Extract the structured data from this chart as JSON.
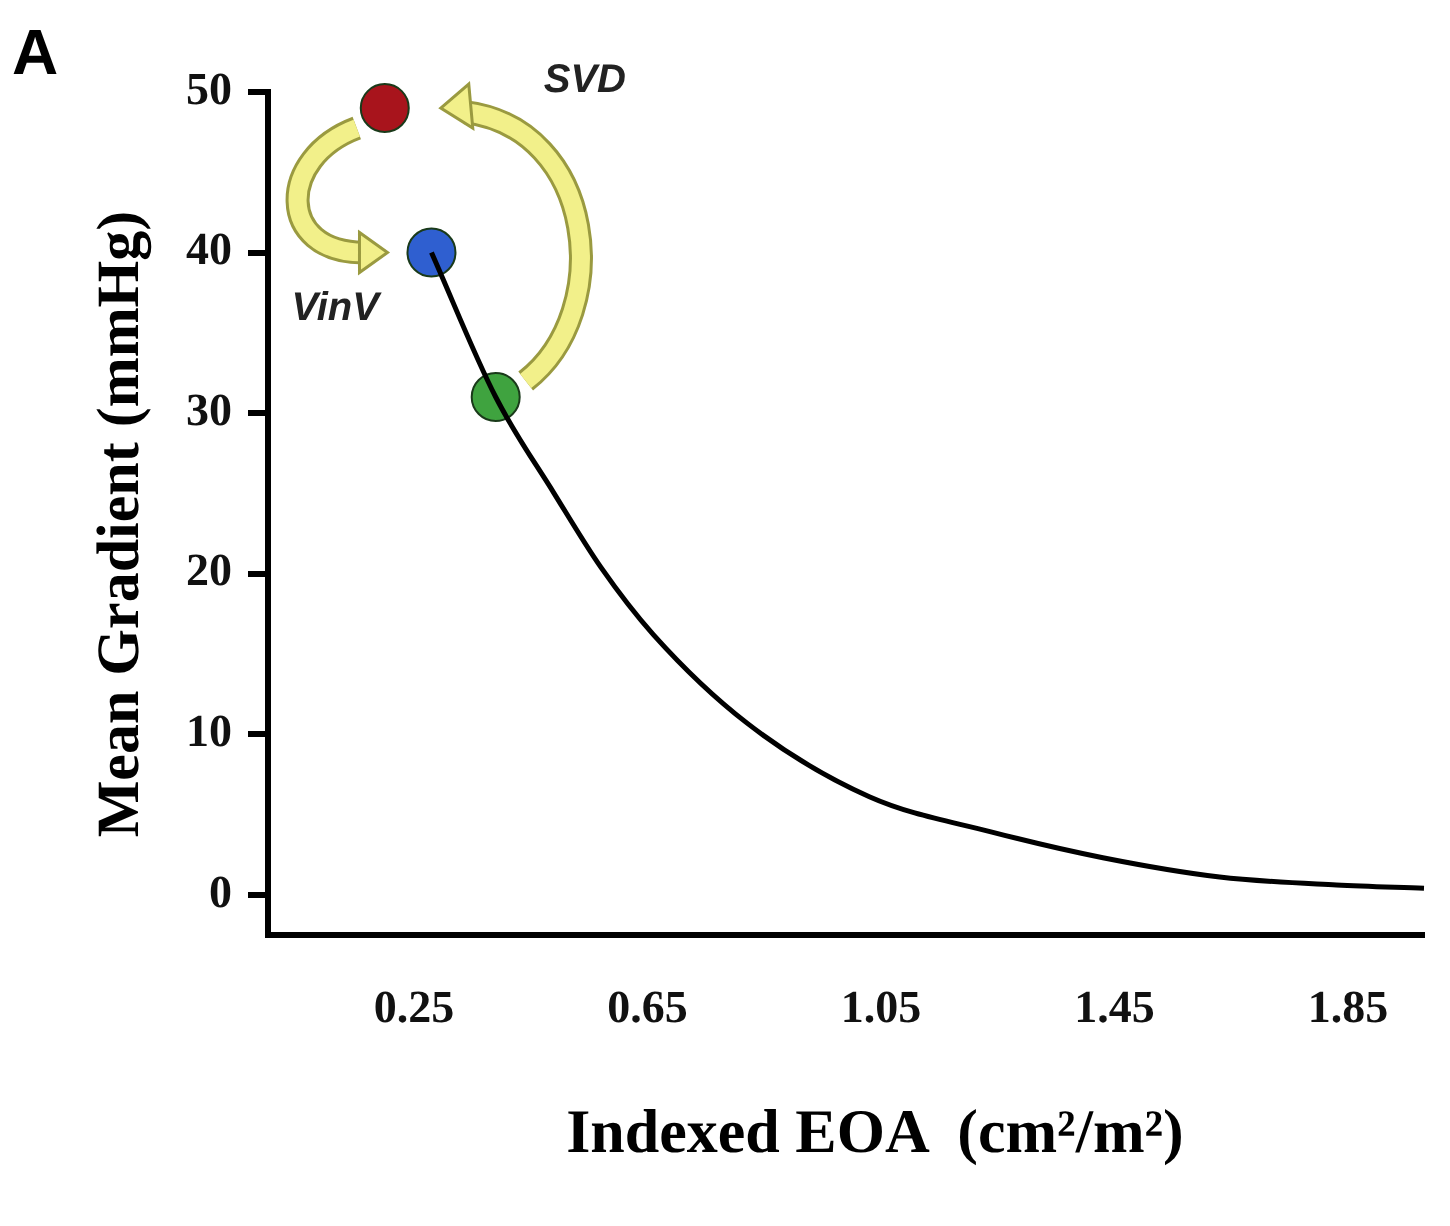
{
  "chart_data": {
    "type": "line",
    "xlabel": "Indexed EOA  (cm²/m²)",
    "ylabel": "Mean Gradient (mmHg)",
    "xlim": [
      0,
      1.98
    ],
    "xticks": [
      0.25,
      0.65,
      1.05,
      1.45,
      1.85
    ],
    "ylim": [
      -2.5,
      50
    ],
    "yticks": [
      0,
      10,
      20,
      30,
      40,
      50
    ],
    "grid": false,
    "legend": false,
    "series": [
      {
        "type": "line",
        "color": "#000000",
        "marker": "none",
        "x": [
          0.28,
          0.39,
          0.49,
          0.57,
          0.66,
          0.82,
          1.03,
          1.24,
          1.43,
          1.63,
          1.83,
          1.98
        ],
        "values": [
          40,
          31,
          25,
          20.4,
          16.2,
          10.7,
          6.1,
          3.9,
          2.3,
          1.1,
          0.6,
          0.4
        ]
      },
      {
        "type": "scatter",
        "marker": "circle",
        "x": [
          0.2,
          0.28,
          0.39
        ],
        "values": [
          49,
          40,
          31
        ],
        "colors": [
          "#a8141c",
          "#2f5fd0",
          "#3fa33f"
        ]
      }
    ],
    "annotations": [
      "A",
      "SVD",
      "VinV"
    ]
  }
}
